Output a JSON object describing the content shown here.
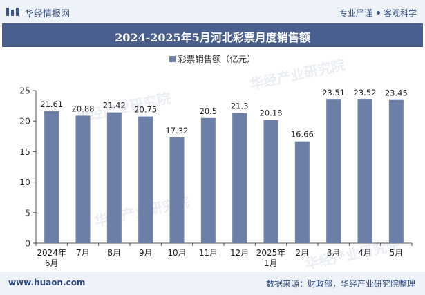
{
  "header": {
    "brand": "华经情报网",
    "tag_left": "专业严谨",
    "tag_right": "客观科学"
  },
  "title": "2024-2025年5月河北彩票月度销售额",
  "watermarks": [
    "华经产业研究院",
    "华经产业研究院",
    "华经产业研究院",
    "华经产业研究院"
  ],
  "chart_data": {
    "type": "bar",
    "title": "2024-2025年5月河北彩票月度销售额",
    "categories": [
      "2024年\n6月",
      "7月",
      "8月",
      "9月",
      "10月",
      "11月",
      "12月",
      "2025年\n1月",
      "2月",
      "3月",
      "4月",
      "5月"
    ],
    "series": [
      {
        "name": "彩票销售额（亿元）",
        "values": [
          21.61,
          20.88,
          21.42,
          20.75,
          17.32,
          20.5,
          21.3,
          20.18,
          16.66,
          23.51,
          23.52,
          23.45
        ]
      }
    ],
    "value_labels": [
      "21.61",
      "20.88",
      "21.42",
      "20.75",
      "17.32",
      "20.5",
      "21.3",
      "20.18",
      "16.66",
      "23.51",
      "23.52",
      "23.45"
    ],
    "yticks": [
      0,
      5,
      10,
      15,
      20,
      25
    ],
    "ylim": [
      0,
      25
    ],
    "grid": false,
    "legend": "top-center",
    "bar_color": "#6c7fa6"
  },
  "footer": {
    "site": "www.huaon.com",
    "source": "数据来源：财政部，华经产业研究院整理"
  }
}
